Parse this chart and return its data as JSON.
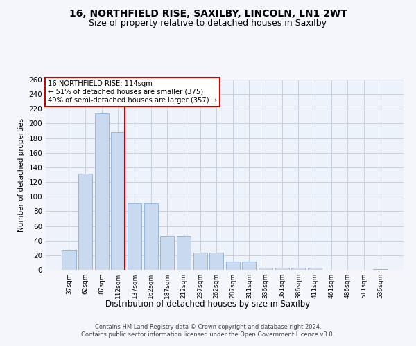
{
  "title1": "16, NORTHFIELD RISE, SAXILBY, LINCOLN, LN1 2WT",
  "title2": "Size of property relative to detached houses in Saxilby",
  "xlabel": "Distribution of detached houses by size in Saxilby",
  "ylabel": "Number of detached properties",
  "categories": [
    "37sqm",
    "62sqm",
    "87sqm",
    "112sqm",
    "137sqm",
    "162sqm",
    "187sqm",
    "212sqm",
    "237sqm",
    "262sqm",
    "287sqm",
    "311sqm",
    "336sqm",
    "361sqm",
    "386sqm",
    "411sqm",
    "461sqm",
    "486sqm",
    "511sqm",
    "536sqm"
  ],
  "values": [
    27,
    131,
    214,
    188,
    91,
    91,
    46,
    46,
    24,
    24,
    11,
    11,
    3,
    3,
    3,
    3,
    0,
    0,
    0,
    1
  ],
  "bar_color": "#c9d9f0",
  "bar_edge_color": "#8ab0d8",
  "red_line_index": 3,
  "ylim": [
    0,
    260
  ],
  "yticks": [
    0,
    20,
    40,
    60,
    80,
    100,
    120,
    140,
    160,
    180,
    200,
    220,
    240,
    260
  ],
  "annotation_line1": "16 NORTHFIELD RISE: 114sqm",
  "annotation_line2": "← 51% of detached houses are smaller (375)",
  "annotation_line3": "49% of semi-detached houses are larger (357) →",
  "annotation_box_color": "#ffffff",
  "annotation_box_edge": "#cc0000",
  "footer1": "Contains HM Land Registry data © Crown copyright and database right 2024.",
  "footer2": "Contains public sector information licensed under the Open Government Licence v3.0.",
  "bg_color": "#eef2fa",
  "grid_color": "#c8d0e0",
  "title_fontsize": 10,
  "subtitle_fontsize": 9
}
